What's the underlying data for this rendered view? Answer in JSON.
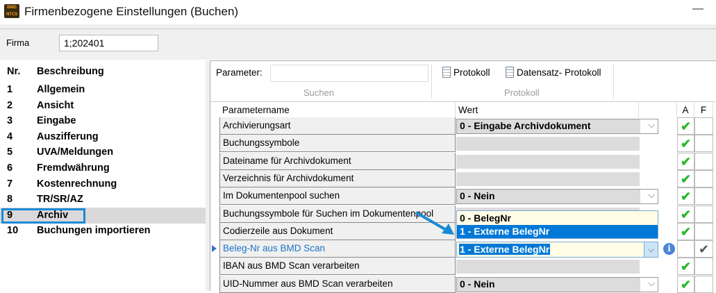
{
  "window": {
    "title": "Firmenbezogene Einstellungen (Buchen)",
    "logo_text": "BMD NTCS",
    "minimize": "—"
  },
  "firma": {
    "label": "Firma",
    "value": "1;202401"
  },
  "left_list": {
    "headers": {
      "nr": "Nr.",
      "desc": "Beschreibung"
    },
    "items": [
      {
        "nr": "1",
        "label": "Allgemein"
      },
      {
        "nr": "2",
        "label": "Ansicht"
      },
      {
        "nr": "3",
        "label": "Eingabe"
      },
      {
        "nr": "4",
        "label": "Auszifferung"
      },
      {
        "nr": "5",
        "label": "UVA/Meldungen"
      },
      {
        "nr": "6",
        "label": "Fremdwährung"
      },
      {
        "nr": "7",
        "label": "Kostenrechnung"
      },
      {
        "nr": "8",
        "label": "TR/SR/AZ"
      },
      {
        "nr": "9",
        "label": "Archiv"
      },
      {
        "nr": "10",
        "label": "Buchungen importieren"
      }
    ],
    "selected": "9"
  },
  "toolbar": {
    "parameter_label": "Parameter:",
    "parameter_value": "",
    "search_group": "Suchen",
    "protokoll": "Protokoll",
    "datensatz_protokoll": "Datensatz- Protokoll",
    "protokoll_group": "Protokoll"
  },
  "grid": {
    "headers": {
      "name": "Parametername",
      "value": "Wert",
      "a": "A",
      "f": "F"
    },
    "rows": [
      {
        "name": "Archivierungsart",
        "value": "0 - Eingabe Archivdokument",
        "combo": true,
        "a": "✔",
        "f": ""
      },
      {
        "name": "Buchungssymbole",
        "value": "",
        "a": "✔",
        "f": ""
      },
      {
        "name": "Dateiname für Archivdokument",
        "value": "",
        "a": "✔",
        "f": ""
      },
      {
        "name": "Verzeichnis für Archivdokument",
        "value": "",
        "a": "✔",
        "f": ""
      },
      {
        "name": "Im Dokumentenpool suchen",
        "value": "0 - Nein",
        "combo": true,
        "a": "✔",
        "f": ""
      },
      {
        "name": "Buchungssymbole für Suchen im Dokumentenpool",
        "value": "",
        "a": "✔",
        "f": ""
      },
      {
        "name": "Codierzeile aus Dokument",
        "value": "",
        "a": "✔",
        "f": ""
      },
      {
        "name": "Beleg-Nr aus BMD Scan",
        "value": "1 - Externe BelegNr",
        "active": true,
        "a": "",
        "f": "✔"
      },
      {
        "name": "IBAN aus BMD Scan verarbeiten",
        "value": "",
        "a": "✔",
        "f": ""
      },
      {
        "name": "UID-Nummer aus BMD Scan verarbeiten",
        "value": "0 - Nein",
        "combo": true,
        "a": "✔",
        "f": ""
      }
    ],
    "dropdown_options": [
      "0 - BelegNr",
      "1 - Externe BelegNr"
    ],
    "dropdown_selected": "1 - Externe BelegNr"
  },
  "colors": {
    "accent": "#0078d7",
    "selection_box": "#1a8ad4",
    "check": "#2db82d",
    "active_text": "#1a73c8"
  }
}
